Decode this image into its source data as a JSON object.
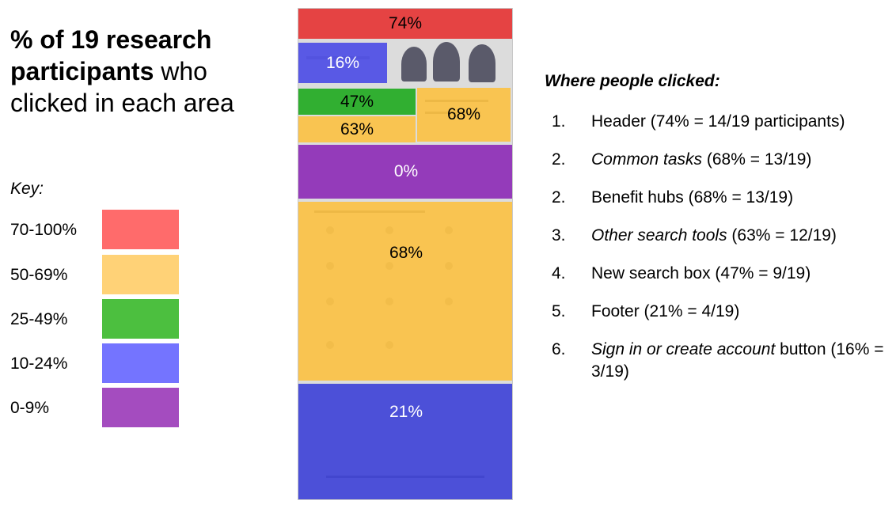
{
  "title": {
    "bold": "% of 19 research participants",
    "rest": " who clicked in each area"
  },
  "key": {
    "label": "Key:",
    "rows": [
      {
        "label": "70-100%",
        "color": "#ff6b6b"
      },
      {
        "label": "50-69%",
        "color": "#ffd277"
      },
      {
        "label": "25-49%",
        "color": "#4cbf3f"
      },
      {
        "label": "10-24%",
        "color": "#7474ff"
      },
      {
        "label": " 0-9%",
        "color": "#a44cbf"
      }
    ]
  },
  "regions": [
    {
      "id": "header",
      "label": "74%",
      "color": "rgba(230,40,40,0.85)",
      "text_color": "#000000"
    },
    {
      "id": "sign-in",
      "label": "16%",
      "color": "rgba(60,60,230,0.82)",
      "text_color": "#ffffff"
    },
    {
      "id": "search-box",
      "label": "47%",
      "color": "rgba(30,170,30,0.9)",
      "text_color": "#000000"
    },
    {
      "id": "common-tasks",
      "label": "68%",
      "color": "rgba(255,190,50,0.82)",
      "text_color": "#000000"
    },
    {
      "id": "other-search",
      "label": "63%",
      "color": "rgba(255,190,50,0.82)",
      "text_color": "#000000"
    },
    {
      "id": "veterans-section",
      "label": "0%",
      "color": "rgba(135,30,180,0.85)",
      "text_color": "#ffffff"
    },
    {
      "id": "benefit-hubs",
      "label": "68%",
      "color": "rgba(255,190,50,0.82)",
      "text_color": "#000000"
    },
    {
      "id": "footer",
      "label": "21%",
      "color": "rgba(50,55,215,0.85)",
      "text_color": "#ffffff"
    }
  ],
  "list": {
    "title": "Where people clicked:",
    "items": [
      {
        "num": "1.",
        "italic": "",
        "text": "Header (74% = 14/19 participants)"
      },
      {
        "num": "2.",
        "italic": "Common tasks",
        "text": " (68% = 13/19)"
      },
      {
        "num": "2.",
        "italic": "",
        "text": "Benefit hubs (68% = 13/19)"
      },
      {
        "num": "3.",
        "italic": "Other search tools",
        "text": " (63% = 12/19)"
      },
      {
        "num": "4.",
        "italic": "",
        "text": "New search box (47% = 9/19)"
      },
      {
        "num": "5.",
        "italic": "",
        "text": "Footer (21% = 4/19)"
      },
      {
        "num": "6.",
        "italic": "Sign in or create account",
        "text": " button (16% = 3/19)"
      }
    ]
  }
}
